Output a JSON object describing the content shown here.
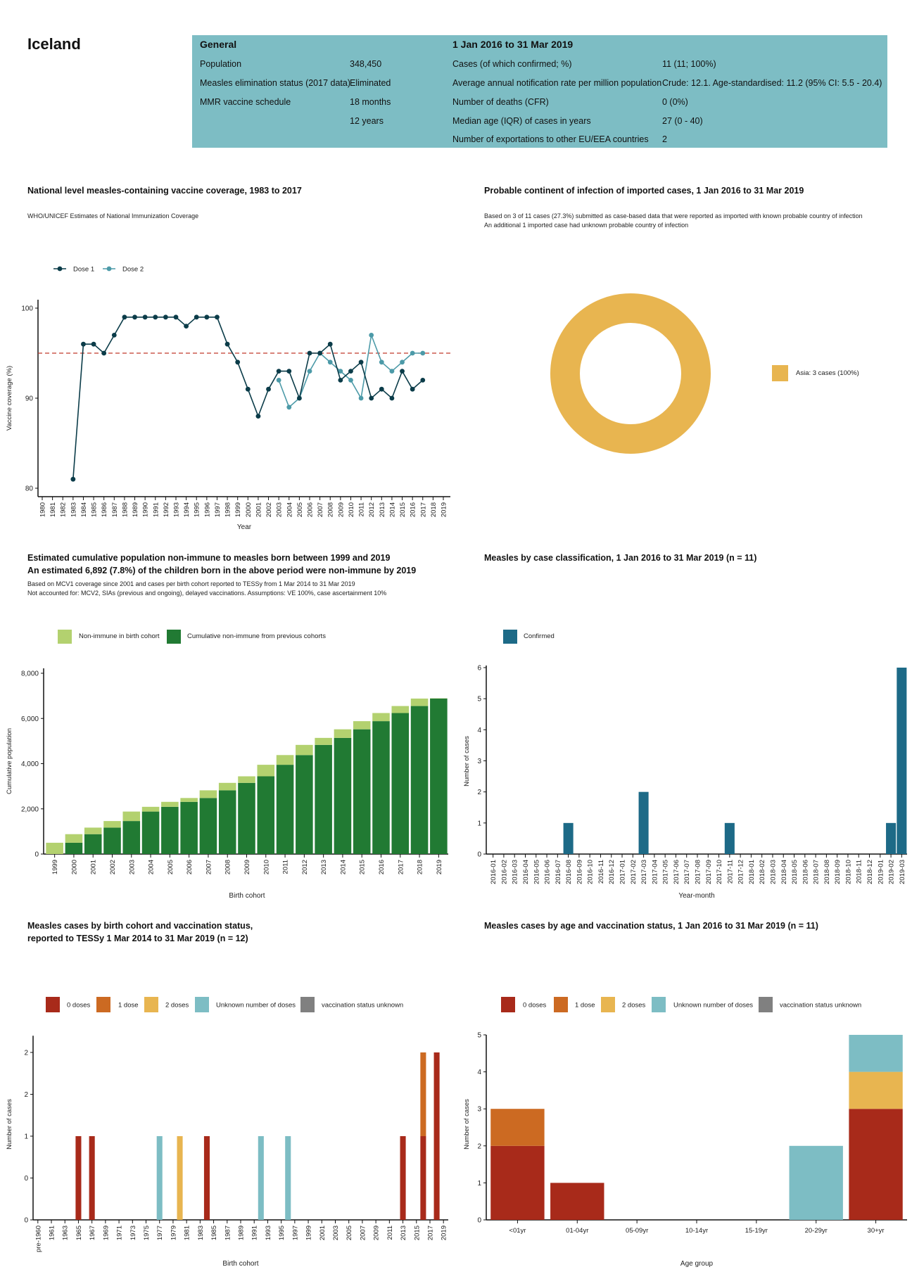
{
  "header": {
    "title": "Iceland"
  },
  "info_table": {
    "general_heading": "General",
    "period_heading": "1 Jan 2016 to 31 Mar 2019",
    "general_rows": [
      {
        "label": "Population",
        "value": "348,450"
      },
      {
        "label": "Measles elimination status (2017 data)",
        "value": "Eliminated"
      },
      {
        "label": "MMR vaccine schedule",
        "value": "18 months"
      },
      {
        "label": "",
        "value": "12 years"
      }
    ],
    "period_rows": [
      {
        "label": "Cases (of which confirmed; %)",
        "value": "11 (11; 100%)"
      },
      {
        "label": "Average annual notification rate per million population",
        "value": "Crude: 12.1. Age-standardised: 11.2 (95% CI: 5.5 - 20.4)"
      },
      {
        "label": "Number of deaths (CFR)",
        "value": "0 (0%)"
      },
      {
        "label": "Median age (IQR) of cases in years",
        "value": "27 (0 - 40)"
      },
      {
        "label": "Number of exportations to other EU/EEA countries",
        "value": "2"
      }
    ]
  },
  "sections": {
    "coverage": {
      "title": "National level measles-containing vaccine coverage, 1983 to 2017",
      "note": "WHO/UNICEF Estimates of National Immunization Coverage"
    },
    "continent": {
      "title": "Probable continent of infection of imported cases, 1 Jan 2016 to 31 Mar 2019",
      "note1": "Based on 3 of 11 cases (27.3%) submitted as case-based data that were reported as imported with known probable country of infection",
      "note2": "An additional 1 imported case had unknown probable country of infection"
    },
    "non_immune": {
      "title1": "Estimated cumulative population non-immune to measles born between 1999 and 2019",
      "title2": "An estimated 6,892 (7.8%) of the children born in the above period were non-immune by 2019",
      "note1": "Based on MCV1 coverage since 2001 and cases per birth cohort reported to TESSy from 1 Mar 2014 to 31 Mar 2019",
      "note2": "Not accounted for: MCV2, SIAs (previous and ongoing), delayed vaccinations. Assumptions: VE 100%, case ascertainment 10%"
    },
    "classification": {
      "title": "Measles by case classification, 1 Jan 2016 to 31 Mar 2019 (n = 11)"
    },
    "birth_cohort": {
      "title1": "Measles cases by birth cohort and vaccination status,",
      "title2": "reported to TESSy 1 Mar 2014 to 31 Mar 2019 (n = 12)"
    },
    "age": {
      "title": "Measles cases by age and vaccination status, 1 Jan 2016 to 31 Mar 2019 (n = 11)"
    }
  },
  "vacc_colors": {
    "0 doses": "#a82a1a",
    "1 dose": "#cc6a22",
    "2 doses": "#e8b550",
    "Unknown number of doses": "#7dbdc4",
    "vaccination status unknown": "#808080"
  },
  "chart_data": [
    {
      "type": "line",
      "xlabel": "Year",
      "ylabel": "Vaccine coverage (%)",
      "x_ticks": [
        "1980",
        "1981",
        "1982",
        "1983",
        "1984",
        "1985",
        "1986",
        "1987",
        "1988",
        "1989",
        "1990",
        "1991",
        "1992",
        "1993",
        "1994",
        "1995",
        "1996",
        "1997",
        "1998",
        "1999",
        "2000",
        "2001",
        "2002",
        "2003",
        "2004",
        "2005",
        "2006",
        "2007",
        "2008",
        "2009",
        "2010",
        "2011",
        "2012",
        "2013",
        "2014",
        "2015",
        "2016",
        "2017",
        "2018",
        "2019"
      ],
      "y_ticks": [
        80,
        90,
        100
      ],
      "ylim": [
        79.5,
        100.9
      ],
      "reference_line": {
        "value": 95,
        "color": "#c0392b",
        "style": "dashed"
      },
      "legend_position": "top-left",
      "series": [
        {
          "name": "Dose 1",
          "color": "#0b3c49",
          "points": [
            [
              1983,
              81
            ],
            [
              1984,
              96
            ],
            [
              1985,
              96
            ],
            [
              1986,
              95
            ],
            [
              1987,
              97
            ],
            [
              1988,
              99
            ],
            [
              1989,
              99
            ],
            [
              1990,
              99
            ],
            [
              1991,
              99
            ],
            [
              1992,
              99
            ],
            [
              1993,
              99
            ],
            [
              1994,
              98
            ],
            [
              1995,
              99
            ],
            [
              1996,
              99
            ],
            [
              1997,
              99
            ],
            [
              1998,
              96
            ],
            [
              1999,
              94
            ],
            [
              2000,
              91
            ],
            [
              2001,
              88
            ],
            [
              2002,
              91
            ],
            [
              2003,
              93
            ],
            [
              2004,
              93
            ],
            [
              2005,
              90
            ],
            [
              2006,
              95
            ],
            [
              2007,
              95
            ],
            [
              2008,
              96
            ],
            [
              2009,
              92
            ],
            [
              2010,
              93
            ],
            [
              2011,
              94
            ],
            [
              2012,
              90
            ],
            [
              2013,
              91
            ],
            [
              2014,
              90
            ],
            [
              2015,
              93
            ],
            [
              2016,
              91
            ],
            [
              2017,
              92
            ]
          ]
        },
        {
          "name": "Dose 2",
          "color": "#4c9aa8",
          "points": [
            [
              2003,
              92
            ],
            [
              2004,
              89
            ],
            [
              2005,
              90
            ],
            [
              2006,
              93
            ],
            [
              2007,
              95
            ],
            [
              2008,
              94
            ],
            [
              2009,
              93
            ],
            [
              2010,
              92
            ],
            [
              2011,
              90
            ],
            [
              2012,
              97
            ],
            [
              2013,
              94
            ],
            [
              2014,
              93
            ],
            [
              2015,
              94
            ],
            [
              2016,
              95
            ],
            [
              2017,
              95
            ]
          ]
        }
      ]
    },
    {
      "type": "pie",
      "donut": true,
      "slices": [
        {
          "label": "Asia: 3 cases (100%)",
          "value": 3,
          "color": "#e8b550"
        }
      ],
      "legend_position": "right"
    },
    {
      "type": "bar",
      "stacked": true,
      "xlabel": "Birth cohort",
      "ylabel": "Cumulative population",
      "categories": [
        "1999",
        "2000",
        "2001",
        "2002",
        "2003",
        "2004",
        "2005",
        "2006",
        "2007",
        "2008",
        "2009",
        "2010",
        "2011",
        "2012",
        "2013",
        "2014",
        "2015",
        "2016",
        "2017",
        "2018",
        "2019"
      ],
      "y_ticks": [
        0,
        2000,
        4000,
        6000,
        8000
      ],
      "y_tick_labels": [
        "0",
        "2,000",
        "4,000",
        "6,000",
        "8,000"
      ],
      "ylim": [
        0,
        8200
      ],
      "legend_position": "top-left",
      "series": [
        {
          "name": "Cumulative non-immune from previous cohorts",
          "color": "#217a33",
          "values": [
            0,
            500,
            880,
            1170,
            1460,
            1880,
            2090,
            2310,
            2480,
            2820,
            3150,
            3440,
            3950,
            4380,
            4830,
            5140,
            5520,
            5880,
            6240,
            6550,
            6880
          ]
        },
        {
          "name": "Non-immune in birth cohort",
          "color": "#b3d16f",
          "values": [
            500,
            380,
            290,
            290,
            420,
            210,
            220,
            170,
            340,
            330,
            290,
            510,
            430,
            450,
            310,
            380,
            360,
            360,
            310,
            330,
            12
          ]
        }
      ]
    },
    {
      "type": "bar",
      "xlabel": "Year-month",
      "ylabel": "Number of cases",
      "categories": [
        "2016-01",
        "2016-02",
        "2016-03",
        "2016-04",
        "2016-05",
        "2016-06",
        "2016-07",
        "2016-08",
        "2016-09",
        "2016-10",
        "2016-11",
        "2016-12",
        "2017-01",
        "2017-02",
        "2017-03",
        "2017-04",
        "2017-05",
        "2017-06",
        "2017-07",
        "2017-08",
        "2017-09",
        "2017-10",
        "2017-11",
        "2017-12",
        "2018-01",
        "2018-02",
        "2018-03",
        "2018-04",
        "2018-05",
        "2018-06",
        "2018-07",
        "2018-08",
        "2018-09",
        "2018-10",
        "2018-11",
        "2018-12",
        "2019-01",
        "2019-02",
        "2019-03"
      ],
      "y_ticks": [
        0,
        1,
        2,
        3,
        4,
        5,
        6
      ],
      "ylim": [
        0,
        6
      ],
      "legend_position": "top-left",
      "series": [
        {
          "name": "Confirmed",
          "color": "#1d6a87",
          "values": [
            0,
            0,
            0,
            0,
            0,
            0,
            0,
            1,
            0,
            0,
            0,
            0,
            0,
            0,
            2,
            0,
            0,
            0,
            0,
            0,
            0,
            0,
            1,
            0,
            0,
            0,
            0,
            0,
            0,
            0,
            0,
            0,
            0,
            0,
            0,
            0,
            0,
            1,
            6
          ]
        }
      ]
    },
    {
      "type": "bar",
      "stacked": true,
      "xlabel": "Birth cohort",
      "ylabel": "Number of cases",
      "tick_labels": [
        "pre-1960",
        "1961",
        "1963",
        "1965",
        "1967",
        "1969",
        "1971",
        "1973",
        "1975",
        "1977",
        "1979",
        "1981",
        "1983",
        "1985",
        "1987",
        "1989",
        "1991",
        "1993",
        "1995",
        "1997",
        "1999",
        "2001",
        "2003",
        "2005",
        "2007",
        "2009",
        "2011",
        "2013",
        "2015",
        "2017",
        "2019"
      ],
      "y_ticks": [
        0,
        0.5,
        1,
        1.5,
        2
      ],
      "y_tick_labels": [
        "0",
        "0",
        "1",
        "2",
        "2"
      ],
      "ylim": [
        0,
        2.2
      ],
      "legend_position": "top",
      "series": [
        {
          "name": "0 doses",
          "values": {
            "1965": 1,
            "1967": 1,
            "1984": 1,
            "2013": 1,
            "2016": 1,
            "2018": 2
          }
        },
        {
          "name": "1 dose",
          "values": {
            "2016": 1
          }
        },
        {
          "name": "2 doses",
          "values": {
            "1980": 1
          }
        },
        {
          "name": "Unknown number of doses",
          "values": {
            "1977": 1,
            "1992": 1,
            "1996": 1
          }
        },
        {
          "name": "vaccination status unknown",
          "values": {}
        }
      ]
    },
    {
      "type": "bar",
      "stacked": true,
      "xlabel": "Age group",
      "ylabel": "Number of cases",
      "categories": [
        "<01yr",
        "01-04yr",
        "05-09yr",
        "10-14yr",
        "15-19yr",
        "20-29yr",
        "30+yr"
      ],
      "y_ticks": [
        0,
        1,
        2,
        3,
        4,
        5
      ],
      "ylim": [
        0,
        5
      ],
      "legend_position": "top",
      "series": [
        {
          "name": "0 doses",
          "values": [
            2,
            1,
            0,
            0,
            0,
            0,
            3
          ]
        },
        {
          "name": "1 dose",
          "values": [
            1,
            0,
            0,
            0,
            0,
            0,
            0
          ]
        },
        {
          "name": "2 doses",
          "values": [
            0,
            0,
            0,
            0,
            0,
            0,
            1
          ]
        },
        {
          "name": "Unknown number of doses",
          "values": [
            0,
            0,
            0,
            0,
            0,
            2,
            1
          ]
        },
        {
          "name": "vaccination status unknown",
          "values": [
            0,
            0,
            0,
            0,
            0,
            0,
            0
          ]
        }
      ]
    }
  ]
}
